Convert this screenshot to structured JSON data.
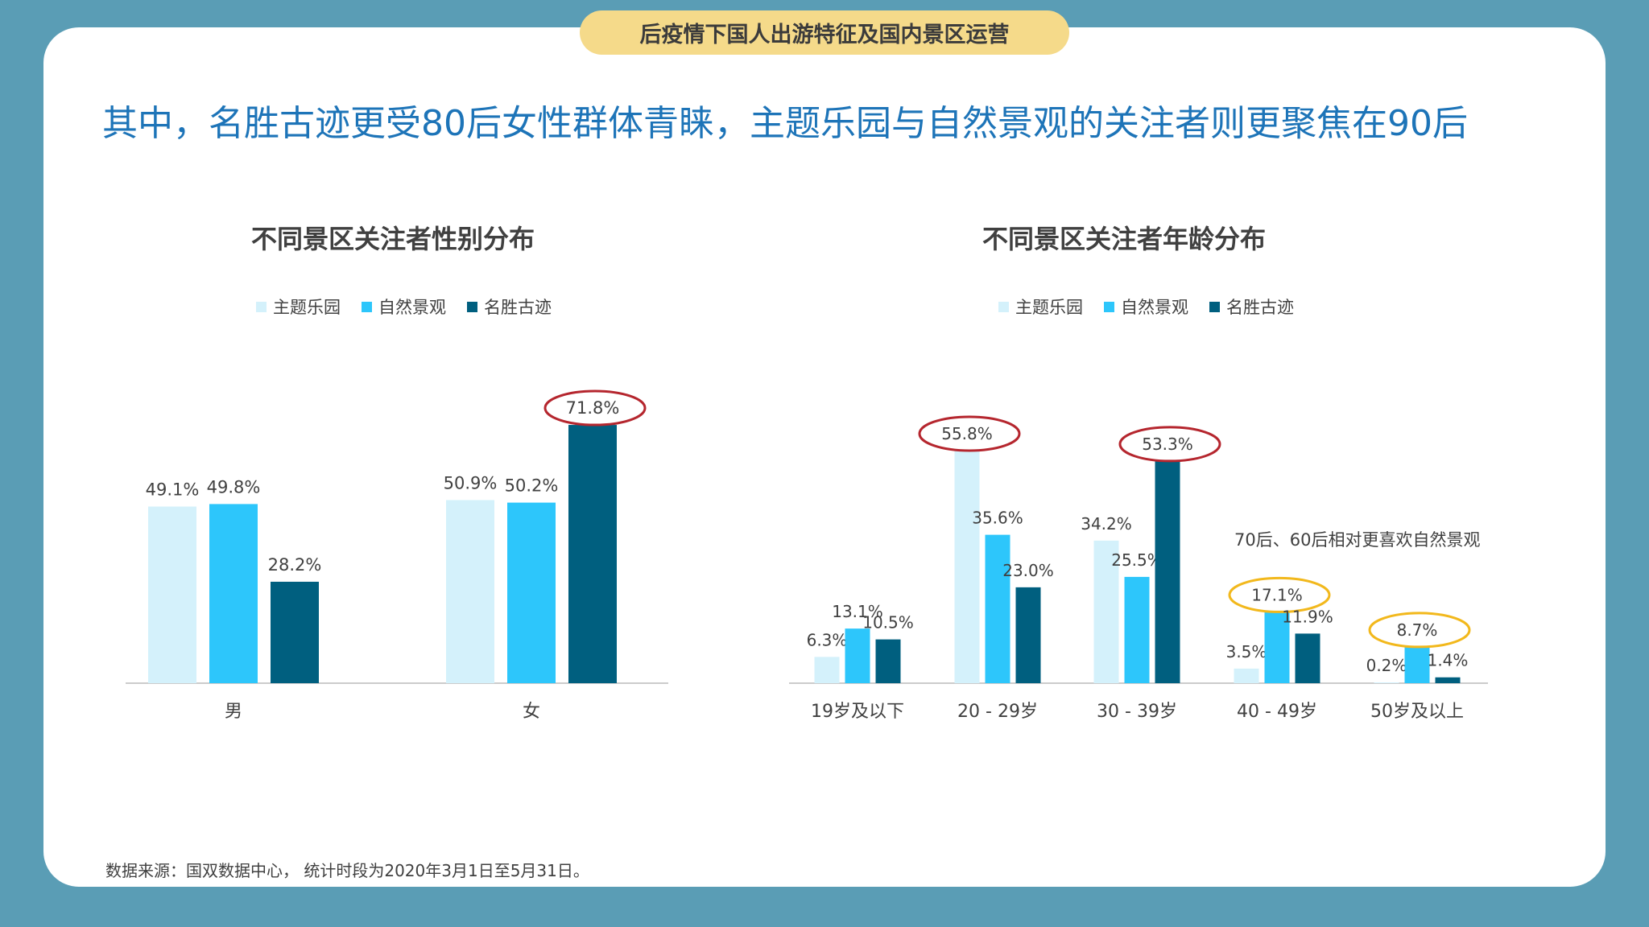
{
  "header": {
    "pill_text": "后疫情下国人出游特征及国内景区运营"
  },
  "headline": "其中，名胜古迹更受80后女性群体青睐，主题乐园与自然景观的关注者则更聚焦在90后",
  "colors": {
    "background": "#5a9db5",
    "headline": "#1d74b8",
    "series": [
      "#d4f1fb",
      "#2dc6fb",
      "#005f7f"
    ],
    "highlight_red": "#b5262e",
    "highlight_yellow": "#f2b81c",
    "axis": "#cccccc"
  },
  "legend": [
    "主题乐园",
    "自然景观",
    "名胜古迹"
  ],
  "note": "70后、60后相对更喜欢自然景观",
  "source": "数据来源：国双数据中心， 统计时段为2020年3月1日至5月31日。",
  "chart_data": [
    {
      "type": "bar",
      "title": "不同景区关注者性别分布",
      "categories": [
        "男",
        "女"
      ],
      "series": [
        {
          "name": "主题乐园",
          "values": [
            49.1,
            50.9
          ]
        },
        {
          "name": "自然景观",
          "values": [
            49.8,
            50.2
          ]
        },
        {
          "name": "名胜古迹",
          "values": [
            28.2,
            71.8
          ]
        }
      ],
      "labels": [
        [
          "49.1%",
          "50.9%"
        ],
        [
          "49.8%",
          "50.2%"
        ],
        [
          "28.2%",
          "71.8%"
        ]
      ],
      "highlight": [
        {
          "series": 2,
          "category": 1,
          "color": "red"
        }
      ],
      "ylim": [
        0,
        100
      ],
      "legend_position": "top"
    },
    {
      "type": "bar",
      "title": "不同景区关注者年龄分布",
      "categories": [
        "19岁及以下",
        "20 - 29岁",
        "30 - 39岁",
        "40 - 49岁",
        "50岁及以上"
      ],
      "series": [
        {
          "name": "主题乐园",
          "values": [
            6.3,
            55.8,
            34.2,
            3.5,
            0.2
          ]
        },
        {
          "name": "自然景观",
          "values": [
            13.1,
            35.6,
            25.5,
            17.1,
            8.7
          ]
        },
        {
          "name": "名胜古迹",
          "values": [
            10.5,
            23.0,
            53.3,
            11.9,
            1.4
          ]
        }
      ],
      "labels": [
        [
          "6.3%",
          "55.8%",
          "34.2%",
          "3.5%",
          "0.2%"
        ],
        [
          "13.1%",
          "35.6%",
          "25.5%",
          "17.1%",
          "8.7%"
        ],
        [
          "10.5%",
          "23.0%",
          "53.3%",
          "11.9%",
          "1.4%"
        ]
      ],
      "highlight": [
        {
          "series": 0,
          "category": 1,
          "color": "red"
        },
        {
          "series": 2,
          "category": 2,
          "color": "red"
        },
        {
          "series": 1,
          "category": 3,
          "color": "yellow"
        },
        {
          "series": 1,
          "category": 4,
          "color": "yellow"
        }
      ],
      "ylim": [
        0,
        60
      ],
      "legend_position": "top"
    }
  ]
}
